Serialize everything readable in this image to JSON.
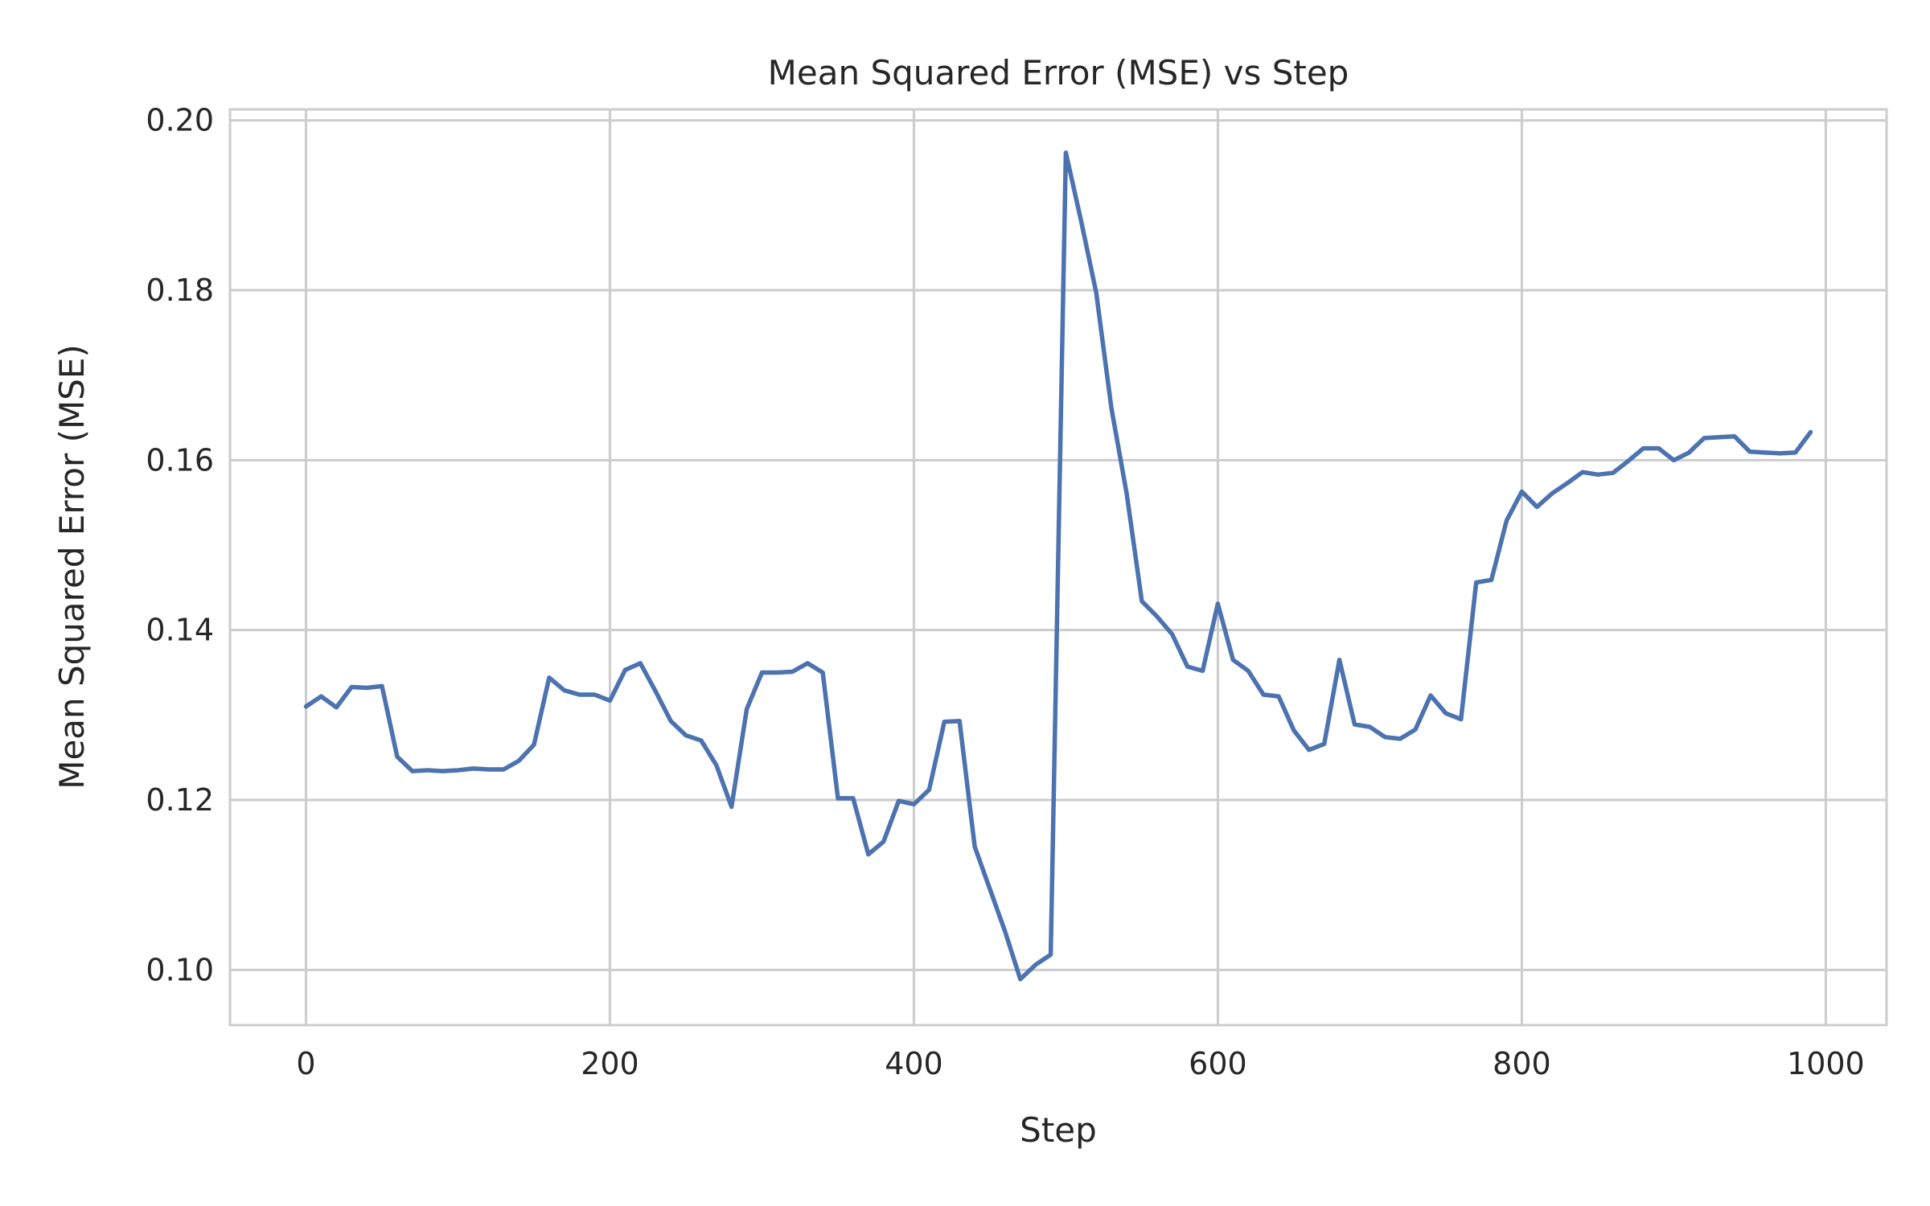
{
  "chart_data": {
    "type": "line",
    "title": "Mean Squared Error (MSE) vs Step",
    "xlabel": "Step",
    "ylabel": "Mean Squared Error (MSE)",
    "xlim": [
      -50,
      1040
    ],
    "ylim": [
      0.0935,
      0.2013
    ],
    "xticks": [
      0,
      200,
      400,
      600,
      800,
      1000
    ],
    "xtick_labels": [
      "0",
      "200",
      "400",
      "600",
      "800",
      "1000"
    ],
    "yticks": [
      0.1,
      0.12,
      0.14,
      0.16,
      0.18,
      0.2
    ],
    "ytick_labels": [
      "0.10",
      "0.12",
      "0.14",
      "0.16",
      "0.18",
      "0.20"
    ],
    "grid": true,
    "series": [
      {
        "color": "#4c72b0",
        "x": [
          0,
          10,
          20,
          30,
          40,
          50,
          60,
          70,
          80,
          90,
          100,
          110,
          120,
          130,
          140,
          150,
          160,
          170,
          180,
          190,
          200,
          210,
          220,
          230,
          240,
          250,
          260,
          270,
          280,
          290,
          300,
          310,
          320,
          330,
          340,
          350,
          360,
          370,
          380,
          390,
          400,
          410,
          420,
          430,
          440,
          450,
          460,
          470,
          480,
          490,
          500,
          510,
          520,
          530,
          540,
          550,
          560,
          570,
          580,
          590,
          600,
          610,
          620,
          630,
          640,
          650,
          660,
          670,
          680,
          690,
          700,
          710,
          720,
          730,
          740,
          750,
          760,
          770,
          780,
          790,
          800,
          810,
          820,
          830,
          840,
          850,
          860,
          870,
          880,
          890,
          900,
          910,
          920,
          930,
          940,
          950,
          960,
          970,
          980,
          990
        ],
        "y": [
          0.131,
          0.1322,
          0.1309,
          0.1333,
          0.1332,
          0.1334,
          0.1251,
          0.1234,
          0.1235,
          0.1234,
          0.1235,
          0.1237,
          0.1236,
          0.1236,
          0.1246,
          0.1265,
          0.1344,
          0.1329,
          0.1324,
          0.1324,
          0.1317,
          0.1353,
          0.1361,
          0.1328,
          0.1293,
          0.1276,
          0.127,
          0.1241,
          0.1192,
          0.1307,
          0.135,
          0.135,
          0.1351,
          0.1361,
          0.135,
          0.1202,
          0.1202,
          0.1136,
          0.1151,
          0.1199,
          0.1195,
          0.1212,
          0.1292,
          0.1293,
          0.1145,
          0.1095,
          0.1045,
          0.0989,
          0.1006,
          0.1018,
          0.1962,
          0.1882,
          0.1797,
          0.1661,
          0.1561,
          0.1434,
          0.1416,
          0.1395,
          0.1357,
          0.1352,
          0.1431,
          0.1365,
          0.1352,
          0.1324,
          0.1322,
          0.1282,
          0.1259,
          0.1266,
          0.1365,
          0.1289,
          0.1286,
          0.1274,
          0.1272,
          0.1283,
          0.1323,
          0.1302,
          0.1295,
          0.1456,
          0.1459,
          0.1529,
          0.1563,
          0.1545,
          0.1561,
          0.1573,
          0.1586,
          0.1583,
          0.1585,
          0.1599,
          0.1614,
          0.1614,
          0.16,
          0.1609,
          0.1626,
          0.1627,
          0.1628,
          0.161,
          0.1609,
          0.1608,
          0.1609,
          0.1633
        ]
      }
    ]
  }
}
